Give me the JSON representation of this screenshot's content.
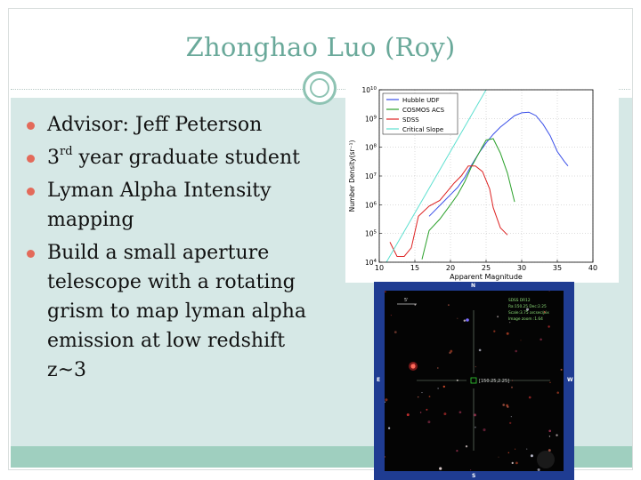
{
  "slide": {
    "title": "Zhonghao Luo (Roy)",
    "colors": {
      "title": "#6aa99a",
      "panel": "#d6e8e6",
      "band": "#9fcfbf",
      "bullet": "#e36a5a"
    }
  },
  "bullets": [
    {
      "text": "Advisor: Jeff Peterson"
    },
    {
      "pre": "3",
      "sup": "rd",
      "post": " year graduate student"
    },
    {
      "text": "Lyman Alpha Intensity mapping"
    },
    {
      "text": "Build a small aperture telescope with a rotating grism to map lyman alpha emission at low redshift  z~3"
    }
  ],
  "chart_data": {
    "type": "line",
    "xlabel": "Apparent Magnitude",
    "ylabel": "Number Density(sr⁻¹)",
    "xlim": [
      10,
      40
    ],
    "ylim_log10": [
      4,
      10
    ],
    "yscale": "log",
    "x_ticks": [
      10,
      15,
      20,
      25,
      30,
      35,
      40
    ],
    "y_ticks_exp": [
      4,
      5,
      6,
      7,
      8,
      9,
      10
    ],
    "grid": true,
    "legend_position": "upper-left",
    "series": [
      {
        "name": "Hubble UDF",
        "color": "#3a4fe8",
        "x": [
          17,
          19,
          21,
          22,
          23,
          24,
          25,
          26,
          27,
          28,
          29,
          30,
          31,
          32,
          33,
          34,
          35,
          36,
          36.5
        ],
        "y_log10": [
          5.6,
          6.1,
          6.6,
          6.95,
          7.4,
          7.8,
          8.15,
          8.45,
          8.7,
          8.9,
          9.1,
          9.2,
          9.22,
          9.1,
          8.8,
          8.4,
          7.85,
          7.5,
          7.35
        ]
      },
      {
        "name": "COSMOS ACS",
        "color": "#2aa02a",
        "x": [
          16,
          17,
          18.5,
          20,
          21,
          22,
          23,
          24,
          25,
          26,
          27,
          28,
          29
        ],
        "y_log10": [
          4.1,
          5.1,
          5.5,
          6.0,
          6.35,
          6.8,
          7.35,
          7.8,
          8.25,
          8.3,
          7.8,
          7.1,
          6.1
        ]
      },
      {
        "name": "SDSS",
        "color": "#dd2222",
        "x": [
          11.5,
          12.5,
          13.5,
          14.5,
          15.5,
          17,
          18.5,
          19.5,
          20.5,
          21.5,
          22.5,
          23.5,
          24.5,
          25.5,
          26,
          27,
          28
        ],
        "y_log10": [
          4.7,
          4.2,
          4.2,
          4.5,
          5.6,
          5.95,
          6.15,
          6.45,
          6.75,
          7.0,
          7.35,
          7.35,
          7.15,
          6.55,
          5.9,
          5.2,
          4.95
        ]
      },
      {
        "name": "Critical Slope",
        "color": "#5ee0d0",
        "x": [
          11,
          25
        ],
        "y_log10": [
          4.0,
          10.0
        ]
      }
    ]
  },
  "sky": {
    "info_lines": [
      "SDSS DR12",
      "Ra:150.25  Dec:2.25",
      "Scale:3.75 arcsec/pix",
      "Image zoom :1.64"
    ],
    "center_label": "[150.25,2.25]",
    "scale_label": "5'",
    "north": "N",
    "south": "S",
    "east": "E",
    "west": "W"
  }
}
